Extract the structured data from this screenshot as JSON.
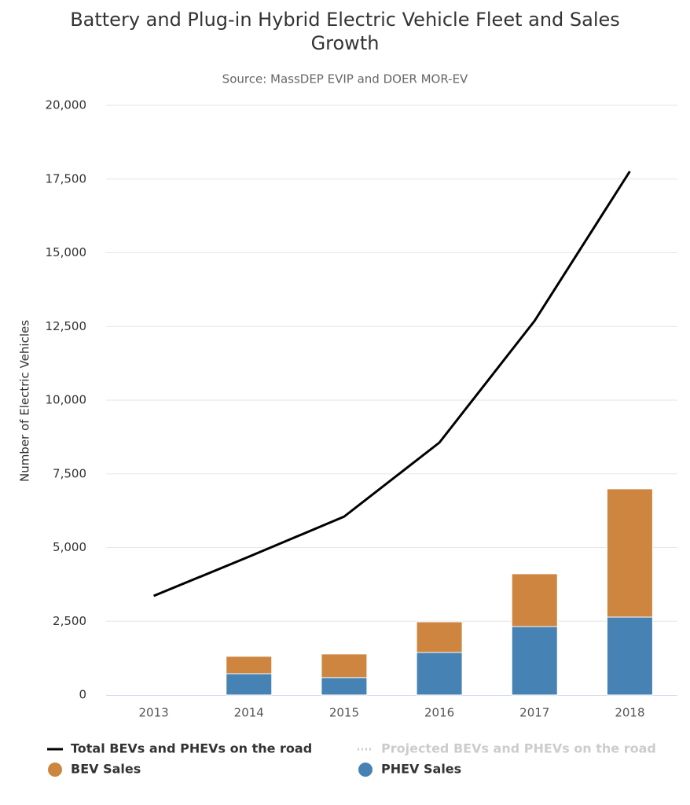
{
  "chart_data": {
    "type": "bar",
    "title": "Battery and Plug-in Hybrid Electric Vehicle Fleet and Sales Growth",
    "subtitle": "Source: MassDEP EVIP and DOER MOR-EV",
    "y_label": "Number of Electric Vehicles",
    "categories": [
      "2013",
      "2014",
      "2015",
      "2016",
      "2017",
      "2018"
    ],
    "series": [
      {
        "name": "Total BEVs and PHEVs on the road",
        "type": "line",
        "color": "#000000",
        "values": [
          3360,
          4690,
          6050,
          8560,
          12690,
          17760
        ]
      },
      {
        "name": "Projected BEVs and PHEVs on the road",
        "type": "line",
        "color": "#cccccc",
        "hidden": true,
        "values": [
          null,
          null,
          null,
          null,
          null,
          null
        ]
      },
      {
        "name": "BEV Sales",
        "type": "bar",
        "color": "#cd853f",
        "values": [
          null,
          590,
          800,
          1040,
          1790,
          4350
        ]
      },
      {
        "name": "PHEV Sales",
        "type": "bar",
        "color": "#4682b4",
        "values": [
          null,
          720,
          590,
          1440,
          2320,
          2640
        ]
      }
    ],
    "stack_order": [
      "PHEV Sales",
      "BEV Sales"
    ],
    "ylim": [
      0,
      20000
    ],
    "yticks": [
      0,
      {
        "value": 2500,
        "label": "2,500"
      },
      {
        "value": 5000,
        "label": "5,000"
      },
      {
        "value": 7500,
        "label": "7,500"
      },
      {
        "value": 10000,
        "label": "10,000"
      },
      {
        "value": 12500,
        "label": "12,500"
      },
      {
        "value": 15000,
        "label": "15,000"
      },
      {
        "value": 17500,
        "label": "17,500"
      },
      {
        "value": 20000,
        "label": "20,000"
      }
    ],
    "grid": true
  }
}
